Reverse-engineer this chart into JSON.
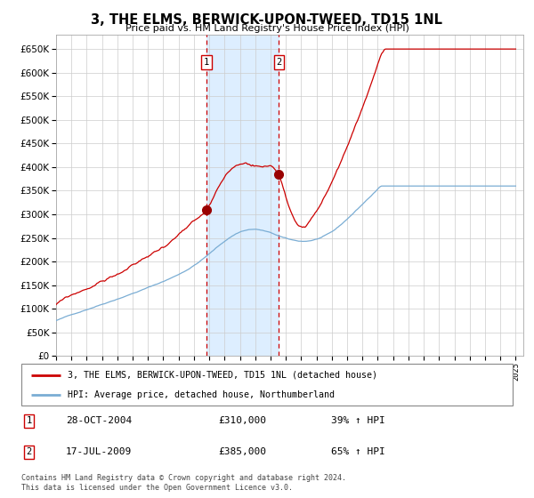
{
  "title": "3, THE ELMS, BERWICK-UPON-TWEED, TD15 1NL",
  "subtitle": "Price paid vs. HM Land Registry's House Price Index (HPI)",
  "legend_line1": "3, THE ELMS, BERWICK-UPON-TWEED, TD15 1NL (detached house)",
  "legend_line2": "HPI: Average price, detached house, Northumberland",
  "transaction1_date": "28-OCT-2004",
  "transaction1_price": 310000,
  "transaction1_pct": "39% ↑ HPI",
  "transaction2_date": "17-JUL-2009",
  "transaction2_price": 385000,
  "transaction2_pct": "65% ↑ HPI",
  "copyright": "Contains HM Land Registry data © Crown copyright and database right 2024.\nThis data is licensed under the Open Government Licence v3.0.",
  "hpi_color": "#7aadd4",
  "price_color": "#cc0000",
  "marker_color": "#990000",
  "vline_color": "#cc0000",
  "shade_color": "#ddeeff",
  "grid_color": "#cccccc",
  "bg_color": "#ffffff",
  "ylim_min": 0,
  "ylim_max": 680000,
  "ytick_step": 50000,
  "transaction1_year": 2004.83,
  "transaction2_year": 2009.54
}
